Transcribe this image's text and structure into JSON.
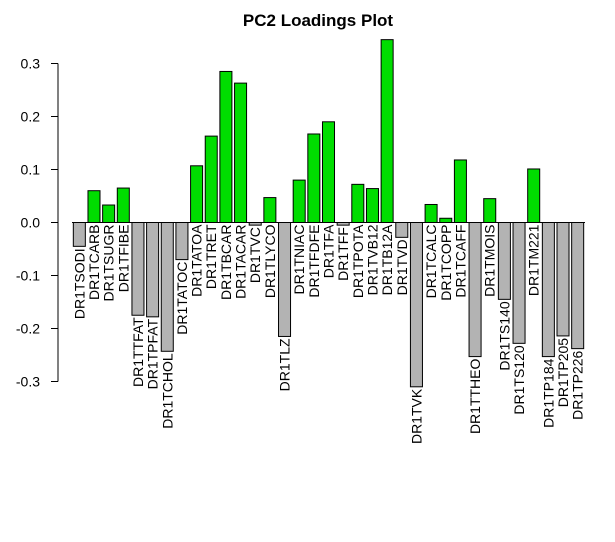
{
  "chart_data": {
    "type": "bar",
    "title": "PC2 Loadings Plot",
    "xlabel": "",
    "ylabel": "",
    "ylim": [
      -0.3,
      0.35
    ],
    "yticks": [
      -0.3,
      -0.2,
      -0.1,
      0.0,
      0.1,
      0.2,
      0.3
    ],
    "ytick_labels": [
      "-0.3",
      "-0.2",
      "-0.1",
      "0.0",
      "0.1",
      "0.2",
      "0.3"
    ],
    "grid": false,
    "legend": "none",
    "colors": {
      "positive": "#00dd00",
      "negative": "#b3b3b3",
      "baseline": "#000000"
    },
    "categories": [
      "DR1TSODI",
      "DR1TCARB",
      "DR1TSUGR",
      "DR1TFIBE",
      "DR1TTFAT",
      "DR1TPFAT",
      "DR1TCHOL",
      "DR1TATOC",
      "DR1TATOA",
      "DR1TRET",
      "DR1TBCAR",
      "DR1TACAR",
      "DR1TVC",
      "DR1TLYCO",
      "DR1TLZ",
      "DR1TNIAC",
      "DR1TFDFE",
      "DR1TFA",
      "DR1TFF",
      "DR1TPOTA",
      "DR1TVB12",
      "DR1TB12A",
      "DR1TVD",
      "DR1TVK",
      "DR1TCALC",
      "DR1TCOPP",
      "DR1TCAFF",
      "DR1TTHEO",
      "DR1TMOIS",
      "DR1TS140",
      "DR1TS120",
      "DR1TM221",
      "DR1TP184",
      "DR1TP205",
      "DR1TP226"
    ],
    "values": [
      -0.045,
      0.06,
      0.033,
      0.065,
      -0.175,
      -0.178,
      -0.243,
      -0.07,
      0.107,
      0.163,
      0.285,
      0.263,
      -0.005,
      0.047,
      -0.215,
      0.08,
      0.167,
      0.19,
      -0.005,
      0.072,
      0.064,
      0.345,
      -0.028,
      -0.31,
      0.034,
      0.008,
      0.118,
      -0.253,
      0.045,
      -0.145,
      -0.228,
      0.101,
      -0.253,
      -0.214,
      -0.238
    ]
  }
}
